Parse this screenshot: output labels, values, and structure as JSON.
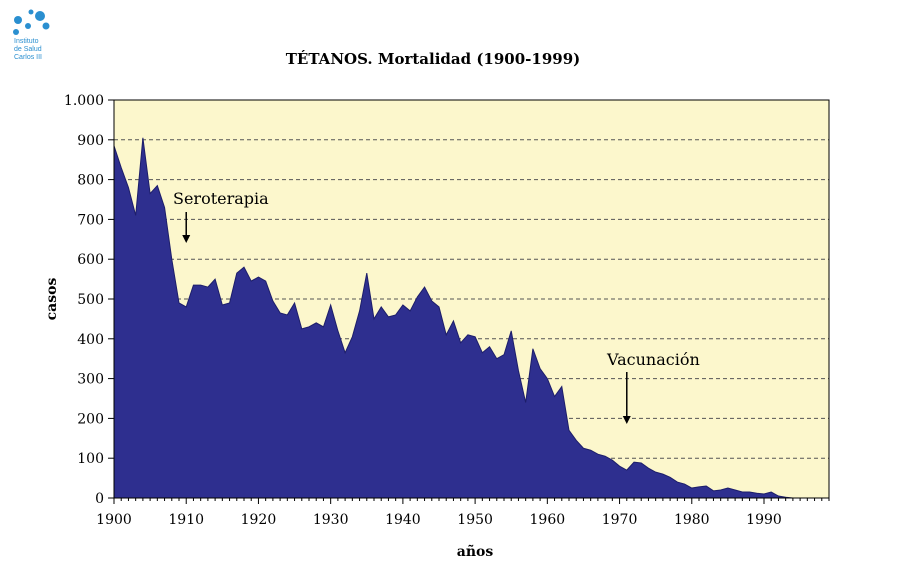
{
  "logo": {
    "lines": [
      "Instituto",
      "de Salud",
      "Carlos III"
    ],
    "color": "#2a8fd0"
  },
  "chart_data": {
    "type": "area",
    "title": "TÉTANOS. Mortalidad (1900-1999)",
    "xlabel": "años",
    "ylabel": "casos",
    "xlim": [
      1900,
      1999
    ],
    "ylim": [
      0,
      1000
    ],
    "x_ticks": [
      1900,
      1910,
      1920,
      1930,
      1940,
      1950,
      1960,
      1970,
      1980,
      1990
    ],
    "y_ticks": [
      0,
      100,
      200,
      300,
      400,
      500,
      600,
      700,
      800,
      900,
      1000
    ],
    "y_tick_labels": [
      "0",
      "100",
      "200",
      "300",
      "400",
      "500",
      "600",
      "700",
      "800",
      "900",
      "1.000"
    ],
    "grid": "horizontal dashed",
    "colors": {
      "background": "#fcf7cc",
      "fill": "#2e2f8f",
      "grid": "#555555"
    },
    "series": [
      {
        "x": [
          1900,
          1901,
          1902,
          1903,
          1904,
          1905,
          1906,
          1907,
          1908,
          1909,
          1910,
          1911,
          1912,
          1913,
          1914,
          1915,
          1916,
          1917,
          1918,
          1919,
          1920,
          1921,
          1922,
          1923,
          1924,
          1925,
          1926,
          1927,
          1928,
          1929,
          1930,
          1931,
          1932,
          1933,
          1934,
          1935,
          1936,
          1937,
          1938,
          1939,
          1940,
          1941,
          1942,
          1943,
          1944,
          1945,
          1946,
          1947,
          1948,
          1949,
          1950,
          1951,
          1952,
          1953,
          1954,
          1955,
          1956,
          1957,
          1958,
          1959,
          1960,
          1961,
          1962,
          1963,
          1964,
          1965,
          1966,
          1967,
          1968,
          1969,
          1970,
          1971,
          1972,
          1973,
          1974,
          1975,
          1976,
          1977,
          1978,
          1979,
          1980,
          1981,
          1982,
          1983,
          1984,
          1985,
          1986,
          1987,
          1988,
          1989,
          1990,
          1991,
          1992,
          1993,
          1994,
          1995,
          1996,
          1997,
          1998,
          1999
        ],
        "values": [
          885,
          830,
          780,
          710,
          905,
          765,
          785,
          730,
          600,
          490,
          480,
          535,
          535,
          530,
          550,
          485,
          490,
          565,
          580,
          545,
          555,
          545,
          495,
          465,
          460,
          490,
          425,
          430,
          440,
          430,
          485,
          420,
          365,
          405,
          470,
          565,
          450,
          480,
          455,
          460,
          485,
          470,
          505,
          530,
          495,
          480,
          410,
          445,
          390,
          410,
          405,
          365,
          380,
          350,
          360,
          420,
          320,
          240,
          375,
          325,
          300,
          255,
          280,
          170,
          145,
          125,
          120,
          110,
          105,
          95,
          80,
          70,
          90,
          88,
          75,
          65,
          60,
          52,
          40,
          35,
          25,
          28,
          30,
          18,
          20,
          25,
          20,
          15,
          15,
          12,
          10,
          15,
          5,
          2,
          0,
          0,
          0,
          0,
          0,
          0
        ]
      }
    ],
    "annotations": [
      {
        "text": "Seroterapia",
        "x": 1910
      },
      {
        "text": "Vacunación",
        "x": 1971
      }
    ]
  }
}
